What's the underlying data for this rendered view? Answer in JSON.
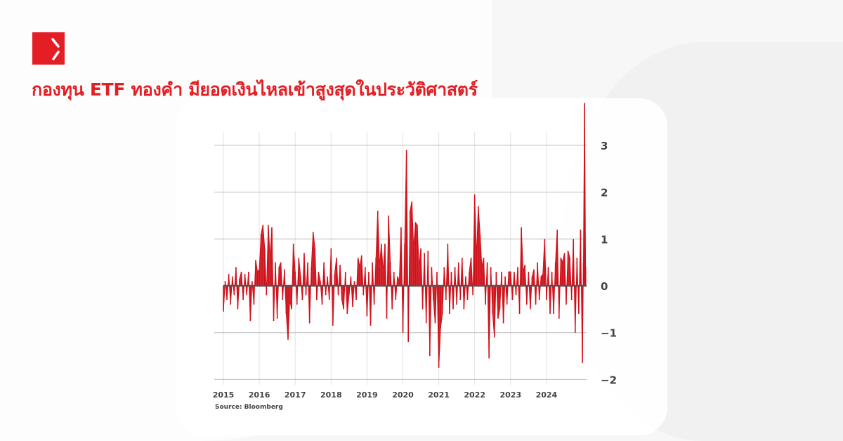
{
  "header": {
    "logo_icon": "red-square-arrow-logo",
    "title": "กองทุน ETF ทองคำ มียอดเงินไหลเข้าสูงสุดในประวัติศาสตร์"
  },
  "colors": {
    "accent": "#e31e24",
    "series": "#d0101a",
    "grid": "#bdbdbd",
    "zero_line": "#555555"
  },
  "chart_data": {
    "type": "area",
    "title": "",
    "xlabel": "",
    "ylabel": "",
    "source": "Source: Bloomberg",
    "x_ticks": [
      "2015",
      "2016",
      "2017",
      "2018",
      "2019",
      "2020",
      "2021",
      "2022",
      "2023",
      "2024"
    ],
    "y_ticks": [
      3,
      2,
      1,
      0,
      -1,
      -2
    ],
    "y_tick_labels": [
      "3",
      "2",
      "1",
      "0",
      "−1",
      "−2"
    ],
    "ylim": [
      -2.2,
      3.95
    ],
    "xlim": [
      2015,
      2025.1
    ],
    "y_axis_position": "right",
    "grid": true,
    "series_by_year": [
      {
        "year": 2015,
        "values": [
          -0.55,
          0.1,
          -0.3,
          0.25,
          -0.4,
          0.2,
          -0.2,
          0.4,
          -0.5,
          0.15,
          0.3,
          -0.3,
          0.25,
          -0.2,
          0.3,
          -0.75,
          0.1,
          -0.4,
          0.55,
          0.3
        ]
      },
      {
        "year": 2016,
        "values": [
          0.35,
          1.1,
          1.3,
          0.8,
          -0.2,
          1.3,
          0.6,
          1.25,
          -0.75,
          0.5,
          -0.7,
          0.4,
          0.5,
          -0.3,
          0.35,
          -0.6,
          -1.15,
          -0.3,
          -0.5,
          0.9
        ]
      },
      {
        "year": 2017,
        "values": [
          0.3,
          -0.4,
          0.6,
          0.2,
          -0.3,
          0.7,
          -0.2,
          0.5,
          -0.8,
          0.4,
          1.15,
          0.8,
          -0.3,
          0.3,
          0.1,
          -0.4,
          0.5,
          -0.2,
          0.2,
          -0.3
        ]
      },
      {
        "year": 2018,
        "values": [
          0.8,
          -0.85,
          0.25,
          0.6,
          -0.2,
          0.45,
          -0.3,
          -0.5,
          0.3,
          -0.6,
          -0.2,
          0.2,
          -0.45,
          0.1,
          -0.3,
          0.6,
          0.4,
          0.65,
          -0.2,
          0.4
        ]
      },
      {
        "year": 2019,
        "values": [
          -0.65,
          0.3,
          -0.85,
          0.5,
          -0.4,
          0.6,
          1.6,
          0.4,
          0.9,
          0.3,
          0.9,
          -0.7,
          1.5,
          0.5,
          -0.5,
          0.3,
          -0.3,
          0.2,
          0.1,
          1.25
        ]
      },
      {
        "year": 2020,
        "values": [
          -1.0,
          0.9,
          2.9,
          -1.2,
          1.6,
          1.8,
          0.8,
          1.35,
          1.3,
          0.4,
          0.8,
          -0.5,
          0.7,
          -0.8,
          0.75,
          -1.5,
          0.4,
          -0.3,
          -0.8,
          0.3
        ]
      },
      {
        "year": 2021,
        "values": [
          -1.75,
          -0.9,
          -0.6,
          0.4,
          -0.3,
          0.9,
          -0.6,
          0.3,
          -0.5,
          0.4,
          -0.4,
          0.5,
          -0.3,
          0.6,
          -0.5,
          0.2,
          -0.3,
          0.3,
          0.6,
          -0.2
        ]
      },
      {
        "year": 2022,
        "values": [
          1.95,
          0.6,
          1.7,
          1.1,
          0.4,
          0.6,
          -0.4,
          0.5,
          -1.55,
          0.4,
          -0.6,
          -1.1,
          0.3,
          -0.7,
          -0.5,
          0.3,
          -0.8,
          0.2,
          -0.4,
          0.3
        ]
      },
      {
        "year": 2023,
        "values": [
          0.3,
          -0.3,
          0.3,
          -0.2,
          0.4,
          -0.6,
          1.25,
          0.3,
          0.45,
          -0.4,
          0.3,
          -0.5,
          0.2,
          0.35,
          -0.4,
          0.5,
          -0.3,
          0.2,
          0.25,
          1.0
        ]
      },
      {
        "year": 2024,
        "values": [
          -0.3,
          0.4,
          -0.6,
          0.3,
          -0.6,
          0.5,
          1.2,
          -0.7,
          0.6,
          0.5,
          0.7,
          -0.4,
          0.75,
          0.6,
          -0.3,
          1.0,
          -1.0,
          0.6,
          -0.6,
          1.2
        ]
      },
      {
        "year": 2025,
        "values": [
          -1.65,
          0.5,
          3.9,
          0.4
        ]
      }
    ]
  }
}
